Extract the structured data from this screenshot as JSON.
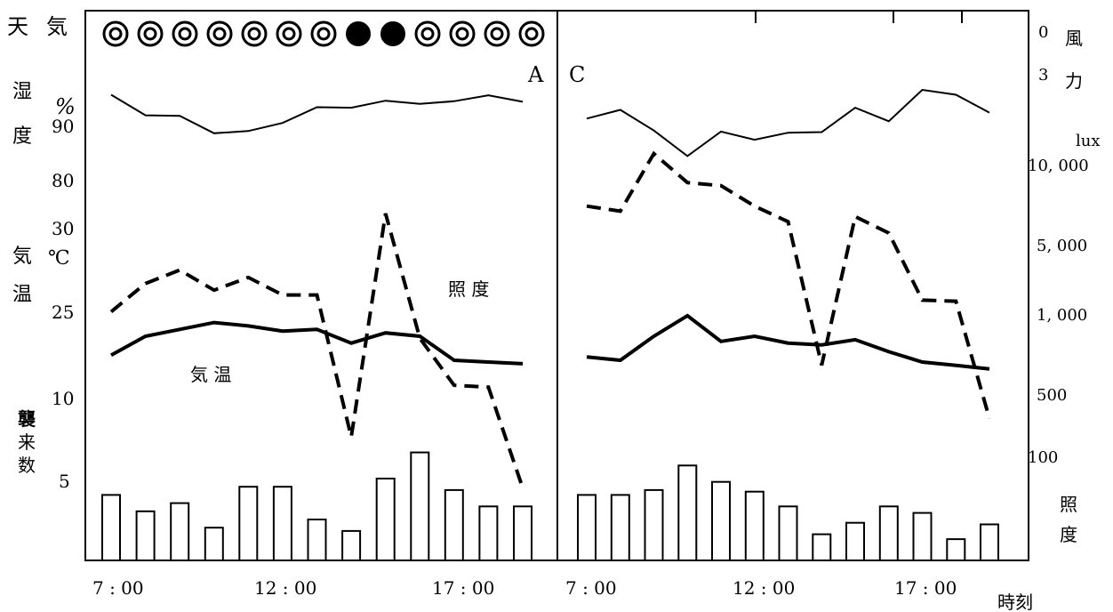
{
  "chart_data": {
    "type": "line",
    "labels": {
      "weather_kanji": [
        "天",
        "気"
      ],
      "humidity_kanji": [
        "湿",
        "度"
      ],
      "humidity_unit": "%",
      "temp_kanji": [
        "気",
        "温"
      ],
      "temp_unit": "℃",
      "attack_kanji": [
        "襲",
        "来",
        "数"
      ],
      "wind_kanji": [
        "風",
        "力"
      ],
      "lux_unit": "lux",
      "illum_kanji": [
        "照",
        "度"
      ],
      "time_label": "時刻",
      "panel_a": "A",
      "panel_c": "C",
      "illum_series_label": "照 度",
      "temp_series_label": "気 温"
    },
    "left_ticks": [
      {
        "label": "90"
      },
      {
        "label": "80"
      },
      {
        "label": "30"
      },
      {
        "label": "25"
      },
      {
        "label": "10"
      },
      {
        "label": "5"
      }
    ],
    "right_ticks": [
      {
        "label": "0"
      },
      {
        "label": "3"
      },
      {
        "label": "10, 000"
      },
      {
        "label": "5, 000"
      },
      {
        "label": "1, 000"
      },
      {
        "label": "500"
      },
      {
        "label": "100"
      }
    ],
    "x_ticks_a": [
      "7 : 00",
      "12 : 00",
      "17 : 00"
    ],
    "x_ticks_c": [
      "7 : 00",
      "12 : 00",
      "17 : 00"
    ],
    "times_a": [
      7,
      8,
      9,
      10,
      11,
      12,
      13,
      14,
      15,
      16,
      17,
      18,
      19
    ],
    "times_c": [
      7,
      8,
      9,
      10,
      11,
      12,
      13,
      14,
      15,
      16,
      17,
      18,
      19
    ],
    "weather_a": [
      "clear",
      "clear",
      "clear",
      "clear",
      "clear",
      "clear",
      "clear",
      "rain",
      "rain",
      "clear",
      "clear",
      "clear",
      "clear"
    ],
    "humidity_a": [
      95.5,
      91.7,
      91.6,
      88.4,
      88.8,
      90.3,
      93.2,
      93.1,
      94.4,
      93.8,
      94.3,
      95.4,
      94.2
    ],
    "humidity_c": [
      91.1,
      92.7,
      88.9,
      84.2,
      88.7,
      87.2,
      88.5,
      88.6,
      93.1,
      90.6,
      96.4,
      95.5,
      92.2
    ],
    "temperature_a": [
      22.5,
      23.6,
      24.0,
      24.4,
      24.2,
      23.9,
      24.0,
      23.2,
      23.8,
      23.6,
      22.2,
      22.1,
      22.0
    ],
    "temperature_c": [
      22.4,
      22.2,
      23.6,
      24.8,
      23.3,
      23.6,
      23.2,
      23.1,
      23.4,
      22.7,
      22.1,
      21.9,
      21.7
    ],
    "illuminance_a": [
      1100,
      1650,
      2000,
      1500,
      1800,
      1400,
      1400,
      140,
      4500,
      720,
      330,
      320,
      60
    ],
    "illuminance_c": [
      5000,
      4650,
      10600,
      7000,
      6700,
      5000,
      4000,
      460,
      4300,
      3400,
      1300,
      1280,
      190
    ],
    "attacks_a": [
      4,
      3,
      3.5,
      2,
      4.5,
      4.5,
      2.5,
      1.8,
      5,
      6.6,
      4.3,
      3.3,
      3.3
    ],
    "attacks_c": [
      4,
      4,
      4.3,
      5.8,
      4.8,
      4.2,
      3.3,
      1.6,
      2.3,
      3.3,
      2.9,
      1.3,
      2.2
    ],
    "ranges": {
      "humidity": [
        75,
        100
      ],
      "temperature": [
        15,
        30
      ],
      "illuminance": [
        50,
        12000
      ],
      "attacks": [
        0,
        10
      ]
    }
  }
}
